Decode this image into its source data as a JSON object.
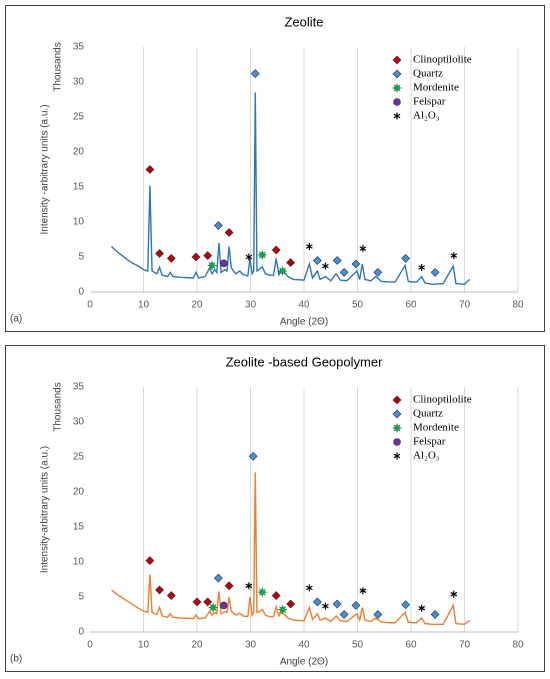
{
  "chart_data": [
    {
      "type": "line",
      "title": "Zeolite",
      "panel_label": "(a)",
      "x_label": "Angle (2Θ)",
      "y_label": "Intensity -arbitrary units (a.u.)",
      "y_unit": "Thousands",
      "xlim": [
        0,
        80
      ],
      "ylim": [
        0,
        35
      ],
      "xticks": [
        0,
        10,
        20,
        30,
        40,
        50,
        60,
        70,
        80
      ],
      "yticks": [
        0,
        5,
        10,
        15,
        20,
        25,
        30,
        35
      ],
      "grid": true,
      "legend": "upper right",
      "color": "#2e75b6",
      "x": [
        4,
        5,
        6,
        7,
        8,
        9,
        10,
        10.8,
        11.2,
        11.6,
        12.5,
        13,
        13.5,
        14.5,
        15,
        15.5,
        17,
        19.3,
        19.8,
        20.3,
        21.5,
        22.4,
        22.8,
        23.3,
        23.7,
        24.1,
        24.5,
        25.2,
        25.6,
        26,
        26.4,
        26.8,
        27.3,
        28,
        28.6,
        29.5,
        29.9,
        30.3,
        30.6,
        30.9,
        31.2,
        31.6,
        32.2,
        32.8,
        33.5,
        34.3,
        34.8,
        35.3,
        35.7,
        36.5,
        37,
        38,
        40,
        41,
        41.6,
        42.5,
        43,
        44,
        45,
        46,
        46.8,
        48,
        49.9,
        50.4,
        50.9,
        51.4,
        52.5,
        53.4,
        54.5,
        57,
        58.9,
        59.5,
        61,
        62,
        62.6,
        64,
        66,
        67.9,
        68.4,
        70,
        70.5,
        71
      ],
      "values": [
        6.5,
        5.8,
        5.2,
        4.6,
        4.1,
        3.7,
        3.2,
        3,
        15.2,
        3,
        2.6,
        3.5,
        2.4,
        2.2,
        2.8,
        2.2,
        2.1,
        2,
        2.8,
        2,
        2.2,
        3.5,
        2.6,
        3.2,
        2.8,
        7,
        2.8,
        3.2,
        3,
        6.5,
        3.5,
        3,
        2.6,
        3,
        2.5,
        2.3,
        4.8,
        2.6,
        3,
        28.5,
        3,
        3.2,
        3.6,
        2.6,
        2.4,
        2.4,
        4.8,
        2.5,
        3.2,
        2.6,
        2.2,
        1.8,
        1.7,
        4,
        2,
        3,
        1.8,
        2.2,
        1.6,
        2.6,
        1.7,
        1.6,
        3,
        1.8,
        4,
        1.8,
        1.6,
        2.2,
        1.5,
        1.4,
        3.8,
        1.5,
        1.4,
        2.2,
        1.3,
        1.1,
        1.2,
        3.7,
        1.2,
        1.1,
        1.5,
        1.8
      ],
      "series": [
        {
          "name": "Clinoptilolite",
          "color": "#c00000",
          "symbol": "diamond",
          "x": [
            11.2,
            13,
            15.2,
            19.8,
            22,
            26,
            34.8,
            37.5
          ],
          "values": [
            17.5,
            5.5,
            4.8,
            5,
            5.2,
            8.5,
            6,
            4.2
          ]
        },
        {
          "name": "Quartz",
          "color": "#4a90d0",
          "symbol": "diamond",
          "x": [
            24,
            30.9,
            42.5,
            46.2,
            47.5,
            49.7,
            53.8,
            59,
            64.5
          ],
          "values": [
            9.5,
            31.2,
            4.5,
            4.5,
            2.8,
            4,
            2.8,
            4.8,
            2.8
          ]
        },
        {
          "name": "Mordenite",
          "color": "#00b050",
          "symbol": "star",
          "x": [
            22.8,
            32.2,
            36
          ],
          "values": [
            3.8,
            5.3,
            3
          ]
        },
        {
          "name": "Felspar",
          "color": "#7030a0",
          "symbol": "circle",
          "x": [
            25
          ],
          "values": [
            4.1
          ]
        },
        {
          "name": "Al₂O₃",
          "color": "#000000",
          "symbol": "asterisk",
          "x": [
            29.7,
            41,
            44,
            51,
            62,
            68
          ],
          "values": [
            5,
            6.5,
            3.7,
            6.2,
            3.5,
            5.2
          ]
        }
      ]
    },
    {
      "type": "line",
      "title": "Zeolite -based Geopolymer",
      "panel_label": "(b)",
      "x_label": "Angle (2Θ)",
      "y_label": "Intensity-arbitrary units (a.u.)",
      "y_unit": "Thousands",
      "xlim": [
        0,
        80
      ],
      "ylim": [
        0,
        35
      ],
      "xticks": [
        0,
        10,
        20,
        30,
        40,
        50,
        60,
        70,
        80
      ],
      "yticks": [
        0,
        5,
        10,
        15,
        20,
        25,
        30,
        35
      ],
      "grid": true,
      "legend": "upper right",
      "color": "#ed7d31",
      "x": [
        4,
        5,
        6,
        7,
        8,
        9,
        10,
        10.8,
        11.2,
        11.6,
        12.5,
        13,
        13.5,
        14.5,
        15,
        15.5,
        17,
        19.3,
        19.8,
        20.3,
        21.5,
        22.4,
        22.8,
        23.3,
        23.7,
        24.1,
        24.5,
        25.2,
        25.6,
        26,
        26.4,
        26.8,
        27.3,
        28,
        28.6,
        29.5,
        29.9,
        30.3,
        30.6,
        30.9,
        31.2,
        31.6,
        32.2,
        32.8,
        33.5,
        34.3,
        34.8,
        35.3,
        35.7,
        36.5,
        37,
        38,
        40,
        41,
        41.6,
        42.5,
        43,
        44,
        45,
        46,
        46.8,
        48,
        49.9,
        50.4,
        50.9,
        51.4,
        52.5,
        53.4,
        54.5,
        57,
        58.9,
        59.5,
        61,
        62,
        62.6,
        64,
        66,
        67.9,
        68.4,
        70,
        70.5,
        71
      ],
      "values": [
        6,
        5.4,
        4.9,
        4.4,
        3.9,
        3.4,
        3,
        2.8,
        8.2,
        2.8,
        2.5,
        3.5,
        2.3,
        2.1,
        2.6,
        2.1,
        2,
        1.9,
        2.4,
        1.9,
        2,
        3,
        2.4,
        2.8,
        2.6,
        5.8,
        2.6,
        2.9,
        2.8,
        5,
        3,
        2.7,
        2.4,
        2.7,
        2.3,
        2.2,
        5,
        2.4,
        2.8,
        22.8,
        2.8,
        2.9,
        3.2,
        2.4,
        2.2,
        2.2,
        3.6,
        2.3,
        2.8,
        2.4,
        2,
        1.7,
        1.6,
        3.5,
        1.8,
        2.6,
        1.7,
        2,
        1.5,
        2.3,
        1.6,
        1.5,
        2.6,
        1.7,
        3.5,
        1.7,
        1.5,
        2,
        1.4,
        1.3,
        2.8,
        1.4,
        1.3,
        2,
        1.2,
        1.1,
        1.1,
        3.8,
        1.2,
        1.1,
        1.4,
        1.6
      ],
      "series": [
        {
          "name": "Clinoptilolite",
          "color": "#c00000",
          "symbol": "diamond",
          "x": [
            11.2,
            13,
            15.2,
            20,
            22,
            26,
            34.8,
            37.5
          ],
          "values": [
            10.2,
            6,
            5.2,
            4.3,
            4.3,
            6.6,
            5.2,
            4
          ]
        },
        {
          "name": "Quartz",
          "color": "#4a90d0",
          "symbol": "diamond",
          "x": [
            24,
            30.5,
            42.5,
            46.2,
            47.5,
            49.7,
            53.8,
            59,
            64.5
          ],
          "values": [
            7.7,
            25.1,
            4.3,
            4,
            2.5,
            3.8,
            2.5,
            3.9,
            2.5
          ]
        },
        {
          "name": "Mordenite",
          "color": "#00b050",
          "symbol": "star",
          "x": [
            23,
            32.2,
            36
          ],
          "values": [
            3.5,
            5.7,
            3.2
          ]
        },
        {
          "name": "Felspar",
          "color": "#7030a0",
          "symbol": "circle",
          "x": [
            25
          ],
          "values": [
            3.8
          ]
        },
        {
          "name": "Al₂O₃",
          "color": "#000000",
          "symbol": "asterisk",
          "x": [
            29.7,
            41,
            44,
            51,
            62,
            68
          ],
          "values": [
            6.6,
            6.3,
            3.7,
            5.9,
            3.4,
            5.4
          ]
        }
      ]
    }
  ]
}
